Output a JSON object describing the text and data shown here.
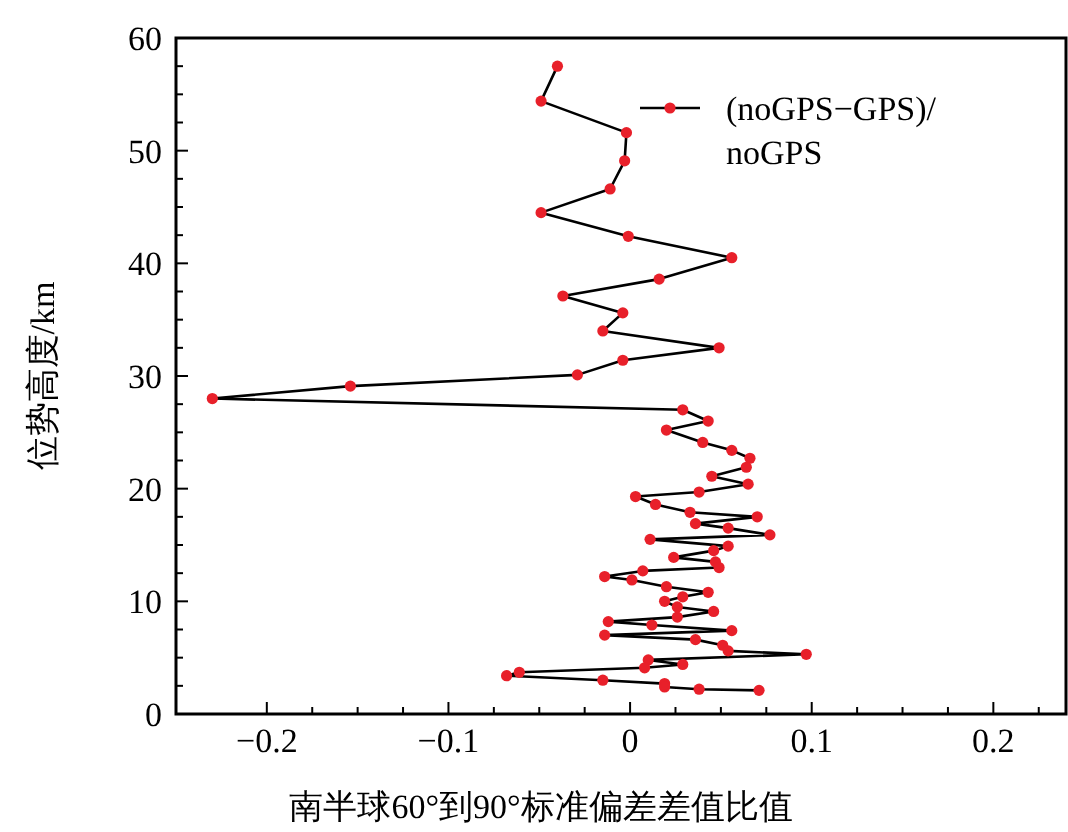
{
  "chart_data": {
    "type": "line",
    "xlabel": "南半球60°到90°标准偏差差值比值",
    "ylabel": "位势高度/km",
    "xlim": [
      -0.25,
      0.24
    ],
    "ylim": [
      0,
      60
    ],
    "xticks": [
      {
        "value": -0.2,
        "label": "−0.2"
      },
      {
        "value": -0.175,
        "label": null
      },
      {
        "value": -0.15,
        "label": null
      },
      {
        "value": -0.125,
        "label": null
      },
      {
        "value": -0.1,
        "label": "−0.1"
      },
      {
        "value": -0.075,
        "label": null
      },
      {
        "value": -0.05,
        "label": null
      },
      {
        "value": -0.025,
        "label": null
      },
      0,
      {
        "value": 0.025,
        "label": null
      },
      {
        "value": 0.05,
        "label": null
      },
      {
        "value": 0.075,
        "label": null
      },
      0.1,
      {
        "value": 0.125,
        "label": null
      },
      {
        "value": 0.15,
        "label": null
      },
      {
        "value": 0.175,
        "label": null
      },
      0.2,
      {
        "value": 0.225,
        "label": null
      }
    ],
    "yticks": [
      0,
      {
        "value": 2.5,
        "label": null
      },
      {
        "value": 5,
        "label": null
      },
      {
        "value": 7.5,
        "label": null
      },
      10,
      {
        "value": 12.5,
        "label": null
      },
      {
        "value": 15,
        "label": null
      },
      {
        "value": 17.5,
        "label": null
      },
      20,
      {
        "value": 22.5,
        "label": null
      },
      {
        "value": 25,
        "label": null
      },
      {
        "value": 27.5,
        "label": null
      },
      30,
      {
        "value": 32.5,
        "label": null
      },
      {
        "value": 35,
        "label": null
      },
      {
        "value": 37.5,
        "label": null
      },
      40,
      {
        "value": 42.5,
        "label": null
      },
      {
        "value": 45,
        "label": null
      },
      {
        "value": 47.5,
        "label": null
      },
      50,
      {
        "value": 52.5,
        "label": null
      },
      {
        "value": 55,
        "label": null
      },
      {
        "value": 57.5,
        "label": null
      },
      60
    ],
    "grid": false,
    "legend": "top right",
    "marker": "circle",
    "line_style": "solid",
    "series": [
      {
        "name": "(noGPS−GPS)/\nnoGPS",
        "color": "#e8202a",
        "x": [
          -0.04,
          -0.049,
          -0.002,
          -0.003,
          -0.011,
          -0.049,
          -0.001,
          0.056,
          0.016,
          -0.037,
          -0.004,
          -0.015,
          0.049,
          -0.004,
          -0.029,
          -0.154,
          -0.23,
          0.029,
          0.043,
          0.02,
          0.04,
          0.056,
          0.066,
          0.064,
          0.045,
          0.065,
          0.038,
          0.003,
          0.014,
          0.033,
          0.07,
          0.036,
          0.054,
          0.077,
          0.011,
          0.054,
          0.046,
          0.024,
          0.047,
          0.049,
          0.007,
          -0.014,
          0.001,
          0.02,
          0.043,
          0.029,
          0.019,
          0.026,
          0.046,
          0.026,
          -0.012,
          0.012,
          0.056,
          -0.014,
          0.036,
          0.051,
          0.054,
          0.097,
          0.01,
          0.029,
          0.008,
          -0.061,
          -0.068,
          -0.015,
          0.019,
          0.019,
          0.038,
          0.071
        ],
        "values": [
          57.5,
          54.4,
          51.6,
          49.1,
          46.6,
          44.5,
          42.4,
          40.5,
          38.6,
          37.1,
          35.6,
          34.0,
          32.5,
          31.4,
          30.1,
          29.1,
          28.0,
          27.0,
          26.0,
          25.2,
          24.1,
          23.4,
          22.7,
          21.9,
          21.1,
          20.4,
          19.7,
          19.3,
          18.6,
          17.9,
          17.5,
          16.9,
          16.5,
          15.9,
          15.5,
          14.9,
          14.5,
          13.9,
          13.5,
          13.0,
          12.7,
          12.2,
          11.9,
          11.3,
          10.8,
          10.4,
          10.0,
          9.5,
          9.1,
          8.6,
          8.2,
          7.9,
          7.4,
          7.0,
          6.6,
          6.1,
          5.6,
          5.3,
          4.8,
          4.4,
          4.1,
          3.7,
          3.4,
          3.0,
          2.7,
          2.4,
          2.2,
          2.1
        ]
      }
    ]
  }
}
